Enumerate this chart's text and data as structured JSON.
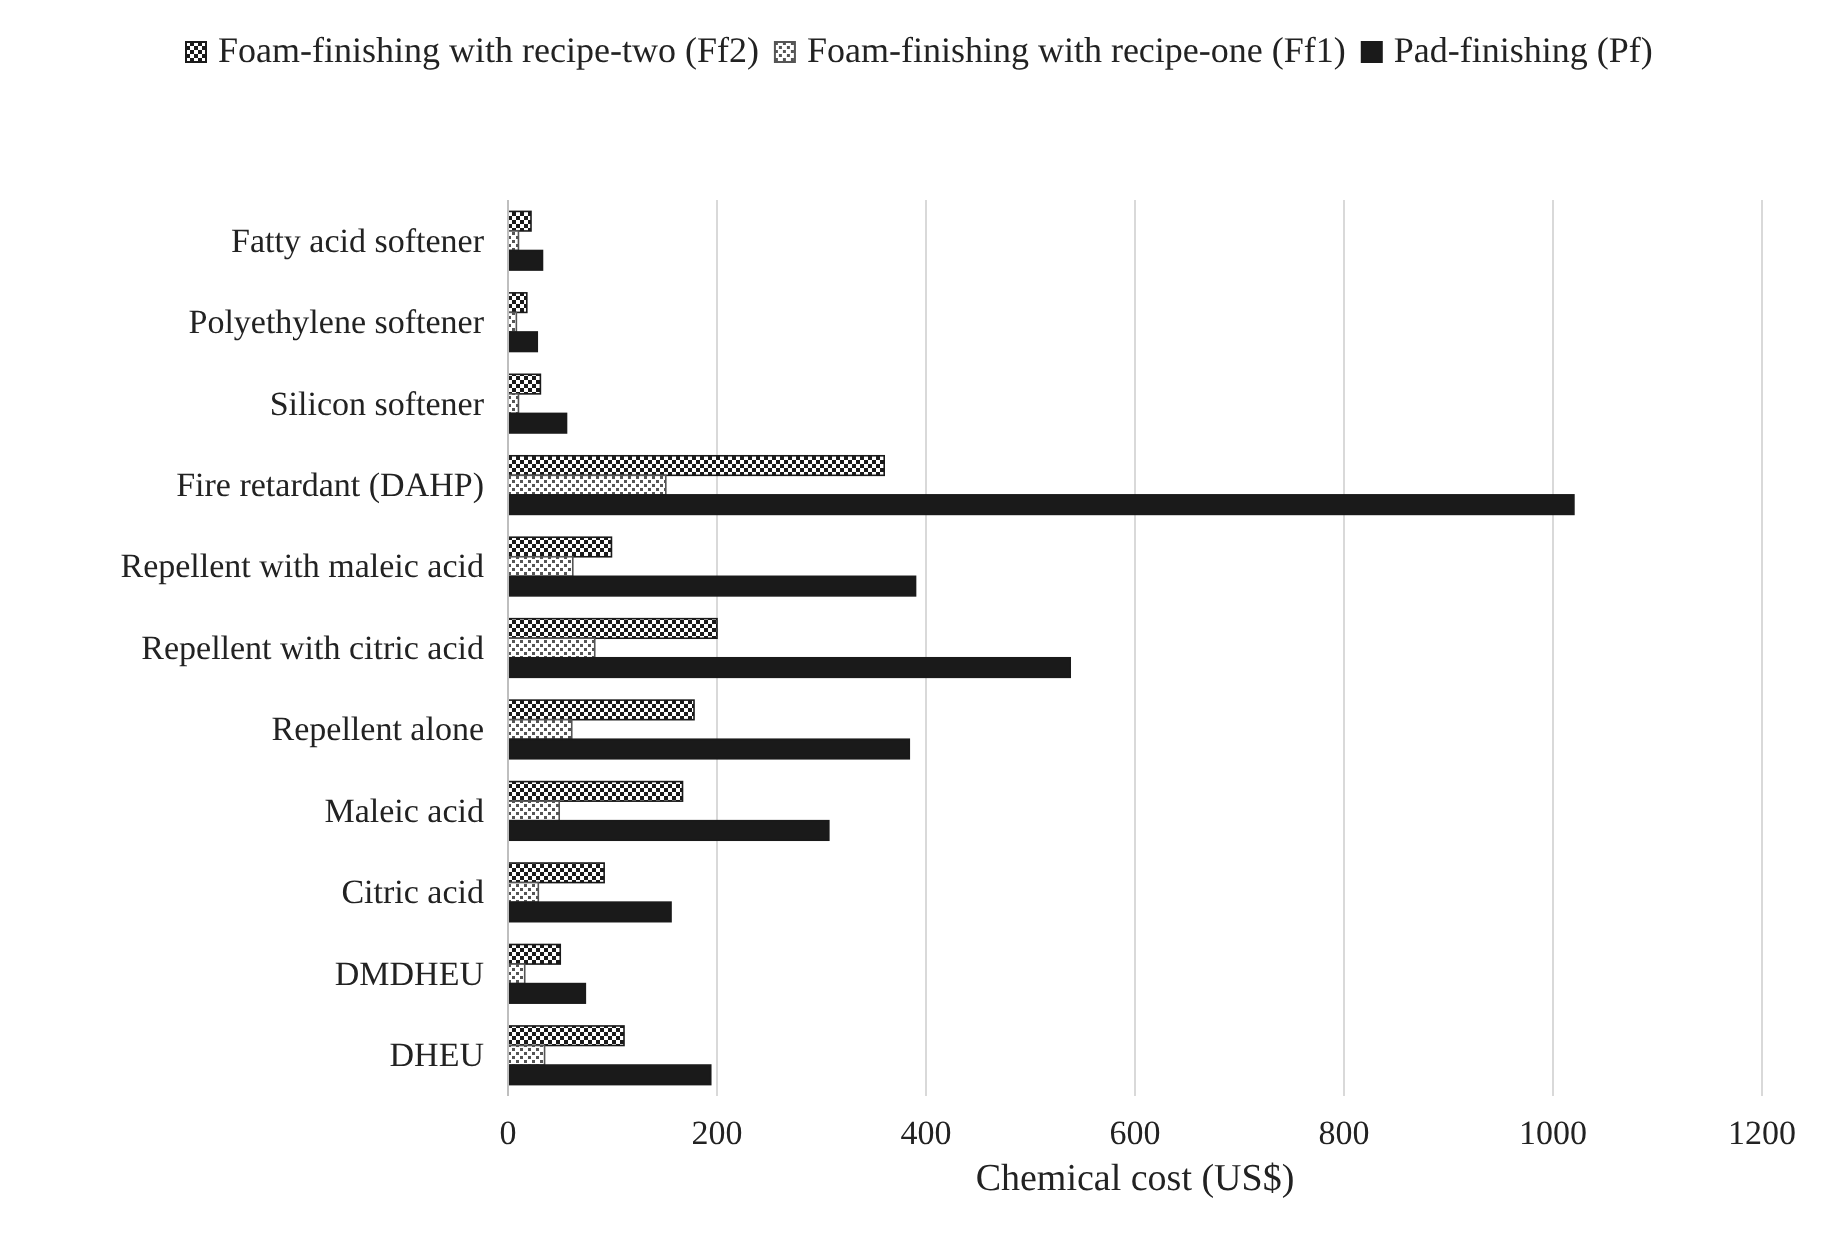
{
  "chart_data": {
    "type": "bar",
    "orientation": "horizontal",
    "xlabel": "Chemical cost (US$)",
    "categories": [
      "Fatty acid softener",
      "Polyethylene softener",
      "Silicon softener",
      "Fire retardant (DAHP)",
      "Repellent with maleic acid",
      "Repellent with citric acid",
      "Repellent alone",
      "Maleic acid",
      "Citric acid",
      "DMDHEU",
      "DHEU"
    ],
    "series": [
      {
        "name": "Foam-finishing with recipe-two (Ff2)",
        "color": "#1a1a1a",
        "values": [
          22,
          18,
          31,
          360,
          99,
          200,
          178,
          167,
          92,
          50,
          111
        ]
      },
      {
        "name": "Foam-finishing with recipe-one (Ff1)",
        "color": "#555555",
        "values": [
          10,
          8,
          10,
          151,
          62,
          83,
          61,
          49,
          29,
          16,
          35
        ]
      },
      {
        "name": "Pad-finishing (Pf)",
        "color": "#1a1a1a",
        "values": [
          33,
          28,
          56,
          1020,
          390,
          538,
          384,
          307,
          156,
          74,
          194
        ]
      }
    ],
    "xlim": [
      0,
      1200
    ],
    "xticks": [
      0,
      200,
      400,
      600,
      800,
      1000,
      1200
    ],
    "grid": "x",
    "legend": "top"
  }
}
